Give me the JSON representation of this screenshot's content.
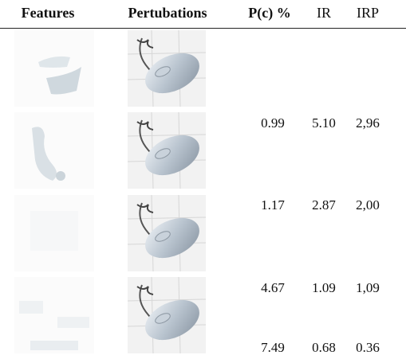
{
  "table": {
    "header": [
      "Features",
      "Pertubations",
      "P(c) %",
      "IR",
      "IRP"
    ],
    "rows": [
      [
        "0.99",
        "5.10",
        "2,96"
      ],
      [
        "1.17",
        "2.87",
        "2,00"
      ],
      [
        "4.67",
        "1.09",
        "1,09"
      ],
      [
        "7.49",
        "0.68",
        "0.36"
      ]
    ]
  }
}
